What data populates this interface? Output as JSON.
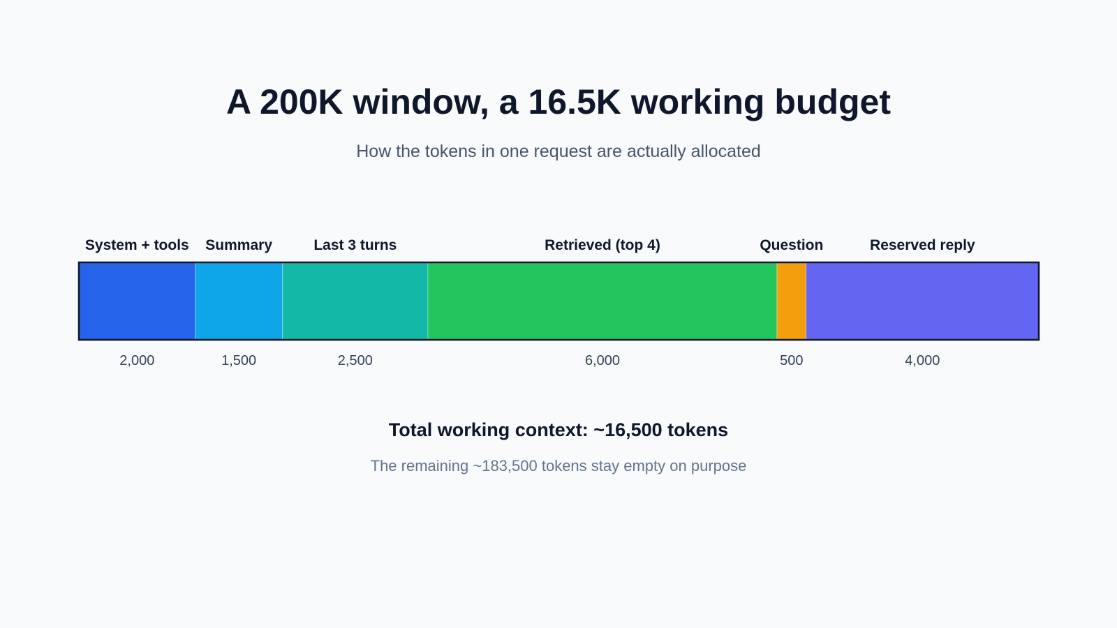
{
  "chart_data": {
    "type": "bar",
    "orientation": "horizontal-stacked",
    "title": "A 200K window, a 16.5K working budget",
    "subtitle": "How the tokens in one request are actually allocated",
    "categories": [
      "System + tools",
      "Summary",
      "Last 3 turns",
      "Retrieved (top 4)",
      "Question",
      "Reserved reply"
    ],
    "values": [
      2000,
      1500,
      2500,
      6000,
      500,
      4000
    ],
    "value_labels": [
      "2,000",
      "1,500",
      "2,500",
      "6,000",
      "500",
      "4,000"
    ],
    "colors": [
      "#2563eb",
      "#0ea5e9",
      "#14b8a6",
      "#22c55e",
      "#f59e0b",
      "#6366f1"
    ],
    "total_label": "Total working context: ~16,500 tokens",
    "note": "The remaining ~183,500 tokens stay empty on purpose"
  }
}
